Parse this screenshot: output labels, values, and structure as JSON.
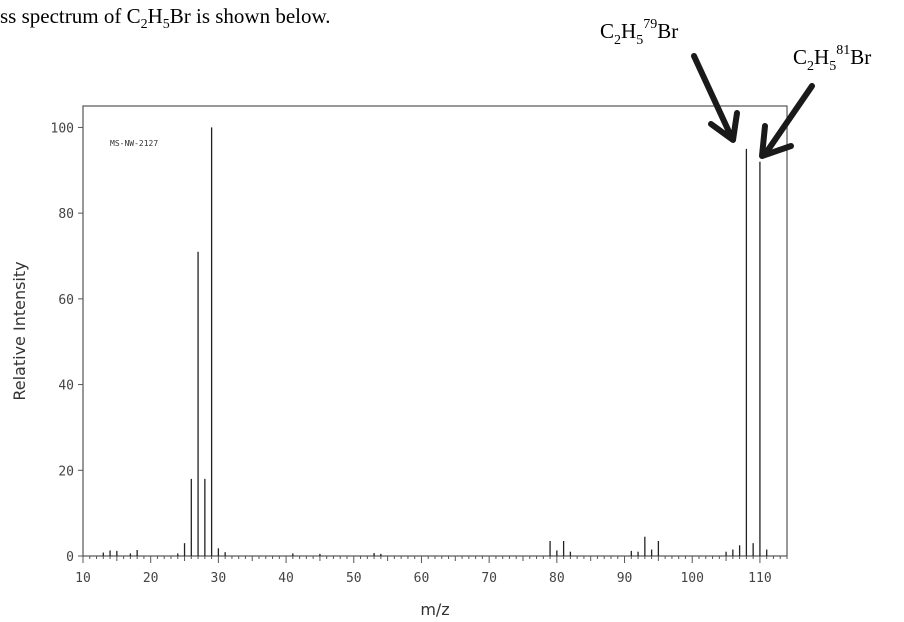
{
  "header": {
    "prefix": "ss spectrum of C",
    "sub1": "2",
    "mid": "H",
    "sub2": "5",
    "suffix": "Br is shown below."
  },
  "annotations": {
    "left": {
      "a": "C",
      "s1": "2",
      "b": "H",
      "s2": "5",
      "sup": "79",
      "c": "Br"
    },
    "right": {
      "a": "C",
      "s1": "2",
      "b": "H",
      "s2": "5",
      "sup": "81",
      "c": "Br"
    }
  },
  "colors": {
    "line": "#000000",
    "axis": "#555555",
    "text": "#333333"
  },
  "chart_data": {
    "type": "bar",
    "inner_label": "MS-NW-2127",
    "xlabel": "m/z",
    "ylabel": "Relative Intensity",
    "xlim": [
      10,
      114
    ],
    "ylim": [
      0,
      105
    ],
    "xticks": [
      10,
      20,
      30,
      40,
      50,
      60,
      70,
      80,
      90,
      100,
      110
    ],
    "yticks": [
      0,
      20,
      40,
      60,
      80,
      100
    ],
    "peaks": [
      [
        13,
        0.8
      ],
      [
        14,
        1.3
      ],
      [
        15,
        1.2
      ],
      [
        17,
        0.6
      ],
      [
        18,
        1.4
      ],
      [
        24,
        0.6
      ],
      [
        25,
        3
      ],
      [
        26,
        18
      ],
      [
        27,
        71
      ],
      [
        28,
        18
      ],
      [
        29,
        100
      ],
      [
        30,
        1.8
      ],
      [
        31,
        0.9
      ],
      [
        41,
        0.6
      ],
      [
        45,
        0.5
      ],
      [
        53,
        0.7
      ],
      [
        54,
        0.5
      ],
      [
        79,
        3.5
      ],
      [
        80,
        1.3
      ],
      [
        81,
        3.5
      ],
      [
        82,
        1.0
      ],
      [
        91,
        1.2
      ],
      [
        92,
        1.0
      ],
      [
        93,
        4.5
      ],
      [
        94,
        1.5
      ],
      [
        95,
        3.5
      ],
      [
        105,
        1.0
      ],
      [
        106,
        1.5
      ],
      [
        107,
        2.5
      ],
      [
        108,
        95
      ],
      [
        109,
        3.0
      ],
      [
        110,
        92
      ],
      [
        111,
        1.5
      ]
    ]
  }
}
